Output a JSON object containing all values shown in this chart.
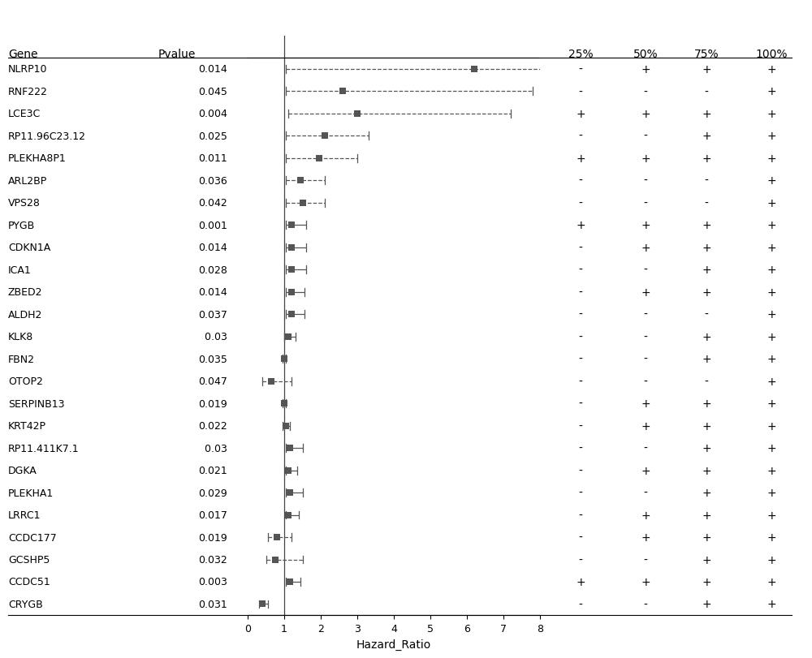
{
  "genes": [
    "NLRP10",
    "RNF222",
    "LCE3C",
    "RP11.96C23.12",
    "PLEKHA8P1",
    "ARL2BP",
    "VPS28",
    "PYGB",
    "CDKN1A",
    "ICA1",
    "ZBED2",
    "ALDH2",
    "KLK8",
    "FBN2",
    "OTOP2",
    "SERPINB13",
    "KRT42P",
    "RP11.411K7.1",
    "DGKA",
    "PLEKHA1",
    "LRRC1",
    "CCDC177",
    "GCSHP5",
    "CCDC51",
    "CRYGB"
  ],
  "pvalues": [
    "0.014",
    "0.045",
    "0.004",
    "0.025",
    "0.011",
    "0.036",
    "0.042",
    "0.001",
    "0.014",
    "0.028",
    "0.014",
    "0.037",
    " 0.03",
    "0.035",
    "0.047",
    "0.019",
    "0.022",
    " 0.03",
    "0.021",
    "0.029",
    "0.017",
    "0.019",
    "0.032",
    "0.003",
    "0.031"
  ],
  "hr": [
    6.2,
    2.6,
    3.0,
    2.1,
    1.95,
    1.45,
    1.5,
    1.2,
    1.2,
    1.2,
    1.2,
    1.2,
    1.1,
    1.0,
    0.65,
    1.0,
    1.05,
    1.15,
    1.1,
    1.15,
    1.1,
    0.8,
    0.75,
    1.15,
    0.4
  ],
  "ci_low": [
    1.05,
    1.05,
    1.1,
    1.05,
    1.05,
    1.05,
    1.05,
    1.05,
    1.05,
    1.05,
    1.05,
    1.05,
    1.0,
    0.95,
    0.4,
    0.95,
    0.95,
    1.05,
    1.05,
    1.05,
    1.05,
    0.55,
    0.5,
    1.05,
    0.3
  ],
  "ci_high": [
    8.3,
    7.8,
    7.2,
    3.3,
    3.0,
    2.1,
    2.1,
    1.6,
    1.6,
    1.6,
    1.55,
    1.55,
    1.3,
    1.05,
    1.2,
    1.05,
    1.15,
    1.5,
    1.35,
    1.5,
    1.4,
    1.2,
    1.5,
    1.45,
    0.55
  ],
  "dashed": [
    true,
    true,
    true,
    true,
    true,
    true,
    true,
    false,
    false,
    false,
    false,
    false,
    false,
    false,
    true,
    false,
    false,
    false,
    false,
    false,
    false,
    true,
    true,
    false,
    false
  ],
  "pct25": [
    "-",
    "-",
    "+",
    "-",
    "+",
    "-",
    "-",
    "+",
    "-",
    "-",
    "-",
    "-",
    "-",
    "-",
    "-",
    "-",
    "-",
    "-",
    "-",
    "-",
    "-",
    "-",
    "-",
    "+",
    "-"
  ],
  "pct50": [
    "+",
    "-",
    "+",
    "-",
    "+",
    "-",
    "-",
    "+",
    "+",
    "-",
    "+",
    "-",
    "-",
    "-",
    "-",
    "+",
    "+",
    "-",
    "+",
    "-",
    "+",
    "+",
    "-",
    "+",
    "-"
  ],
  "pct75": [
    "+",
    "-",
    "+",
    "+",
    "+",
    "-",
    "-",
    "+",
    "+",
    "+",
    "+",
    "-",
    "+",
    "+",
    "-",
    "+",
    "+",
    "+",
    "+",
    "+",
    "+",
    "+",
    "+",
    "+",
    "+"
  ],
  "pct100": [
    "+",
    "+",
    "+",
    "+",
    "+",
    "+",
    "+",
    "+",
    "+",
    "+",
    "+",
    "+",
    "+",
    "+",
    "+",
    "+",
    "+",
    "+",
    "+",
    "+",
    "+",
    "+",
    "+",
    "+",
    "+"
  ],
  "xmin": 0,
  "xmax": 8,
  "xticks": [
    0,
    1,
    2,
    3,
    4,
    5,
    6,
    7,
    8
  ],
  "plot_color": "#555555",
  "bg_color": "#ffffff"
}
